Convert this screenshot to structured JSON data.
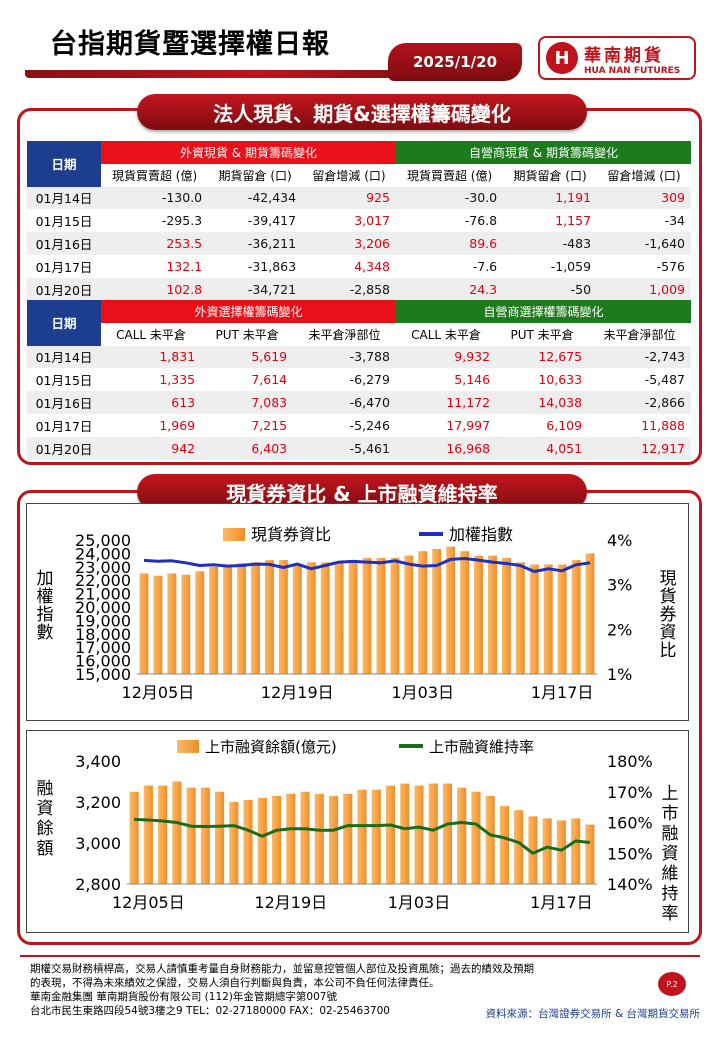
{
  "header": {
    "title": "台指期貨暨選擇權日報",
    "date": "2025/1/20",
    "logo_zh": "華南期貨",
    "logo_en": "HUA NAN FUTURES",
    "logo_mark": "H"
  },
  "section1": {
    "banner": "法人現貨、期貨&選擇權籌碼變化",
    "table1": {
      "date_header": "日期",
      "group_left": "外資現貨 & 期貨籌碼變化",
      "group_right": "自營商現貨 & 期貨籌碼變化",
      "cols": [
        "現貨買賣超 (億)",
        "期貨留倉 (口)",
        "留倉增減 (口)",
        "現貨買賣超 (億)",
        "期貨留倉 (口)",
        "留倉增減 (口)"
      ],
      "rows": [
        [
          "01月14日",
          "-130.0",
          "-42,434",
          "925",
          "-30.0",
          "1,191",
          "309"
        ],
        [
          "01月15日",
          "-295.3",
          "-39,417",
          "3,017",
          "-76.8",
          "1,157",
          "-34"
        ],
        [
          "01月16日",
          "253.5",
          "-36,211",
          "3,206",
          "89.6",
          "-483",
          "-1,640"
        ],
        [
          "01月17日",
          "132.1",
          "-31,863",
          "4,348",
          "-7.6",
          "-1,059",
          "-576"
        ],
        [
          "01月20日",
          "102.8",
          "-34,721",
          "-2,858",
          "24.3",
          "-50",
          "1,009"
        ]
      ]
    },
    "table2": {
      "date_header": "日期",
      "group_left": "外資選擇權籌碼變化",
      "group_right": "自營商選擇權籌碼變化",
      "cols": [
        "CALL 未平倉",
        "PUT 未平倉",
        "未平倉淨部位",
        "CALL 未平倉",
        "PUT 未平倉",
        "未平倉淨部位"
      ],
      "rows": [
        [
          "01月14日",
          "1,831",
          "5,619",
          "-3,788",
          "9,932",
          "12,675",
          "-2,743"
        ],
        [
          "01月15日",
          "1,335",
          "7,614",
          "-6,279",
          "5,146",
          "10,633",
          "-5,487"
        ],
        [
          "01月16日",
          "613",
          "7,083",
          "-6,470",
          "11,172",
          "14,038",
          "-2,866"
        ],
        [
          "01月17日",
          "1,969",
          "7,215",
          "-5,246",
          "17,997",
          "6,109",
          "11,888"
        ],
        [
          "01月20日",
          "942",
          "6,403",
          "-5,461",
          "16,968",
          "4,051",
          "12,917"
        ]
      ]
    }
  },
  "section2": {
    "banner": "現貨券資比 & 上市融資維持率"
  },
  "colors": {
    "brand_red": "#c0141c",
    "bar_orange": "#f7a54a",
    "line_blue": "#1f2fbf",
    "line_green": "#1a6b1a",
    "date_header_blue": "#1d3d8f",
    "group_red": "#e8111a",
    "group_green": "#1d7a1d"
  },
  "chart_data": [
    {
      "type": "bar",
      "chart": "top",
      "legend": [
        "現貨券資比",
        "加權指數"
      ],
      "ylabel": "加權指數",
      "y2label": "現貨券資比",
      "ylim": [
        15000,
        25000
      ],
      "yticks": [
        "15,000",
        "16,000",
        "17,000",
        "18,000",
        "19,000",
        "20,000",
        "21,000",
        "22,000",
        "23,000",
        "24,000",
        "25,000"
      ],
      "y2lim": [
        1,
        4
      ],
      "y2ticks": [
        "1%",
        "2%",
        "3%",
        "4%"
      ],
      "xticks": [
        "12月05日",
        "12月19日",
        "1月03日",
        "1月17日"
      ],
      "series": [
        {
          "name": "現貨券資比",
          "type": "bar",
          "axis": "right",
          "unit": "%",
          "values": [
            3.25,
            3.2,
            3.25,
            3.22,
            3.3,
            3.4,
            3.45,
            3.48,
            3.5,
            3.55,
            3.55,
            3.45,
            3.5,
            3.5,
            3.5,
            3.5,
            3.6,
            3.6,
            3.6,
            3.65,
            3.75,
            3.8,
            3.85,
            3.75,
            3.65,
            3.65,
            3.6,
            3.5,
            3.45,
            3.45,
            3.45,
            3.55,
            3.7
          ]
        },
        {
          "name": "加權指數",
          "type": "line",
          "axis": "left",
          "values": [
            23480,
            23420,
            23450,
            23300,
            23100,
            23150,
            23050,
            23100,
            23200,
            23180,
            22950,
            23200,
            22850,
            23100,
            23350,
            23400,
            23350,
            23300,
            23450,
            23200,
            23050,
            23100,
            23550,
            23620,
            23500,
            23350,
            23250,
            23100,
            22650,
            22850,
            22700,
            23150,
            23300
          ]
        }
      ]
    },
    {
      "type": "bar",
      "chart": "bottom",
      "legend": [
        "上市融資餘額(億元)",
        "上市融資維持率"
      ],
      "ylabel": "融資餘額",
      "y2label": "上市融資維持率",
      "ylim": [
        2800,
        3400
      ],
      "yticks": [
        "2,800",
        "3,000",
        "3,200",
        "3,400"
      ],
      "y2lim": [
        140,
        180
      ],
      "y2ticks": [
        "140%",
        "150%",
        "160%",
        "170%",
        "180%"
      ],
      "xticks": [
        "12月05日",
        "12月19日",
        "1月03日",
        "1月17日"
      ],
      "series": [
        {
          "name": "上市融資餘額(億元)",
          "type": "bar",
          "axis": "left",
          "values": [
            3250,
            3280,
            3280,
            3300,
            3270,
            3270,
            3250,
            3200,
            3210,
            3220,
            3230,
            3240,
            3250,
            3240,
            3230,
            3240,
            3260,
            3260,
            3280,
            3290,
            3280,
            3290,
            3290,
            3270,
            3250,
            3230,
            3180,
            3160,
            3130,
            3120,
            3110,
            3120,
            3090
          ]
        },
        {
          "name": "上市融資維持率",
          "type": "line",
          "axis": "right",
          "unit": "%",
          "values": [
            161,
            160.8,
            160.5,
            160,
            158.8,
            158.7,
            158.8,
            159,
            157.5,
            155.5,
            157.5,
            158,
            158,
            157.5,
            157.5,
            159,
            159,
            159,
            159.2,
            158,
            158.5,
            157.5,
            159.5,
            160,
            159.5,
            156,
            155,
            153.5,
            150,
            152,
            151,
            154,
            153.5
          ]
        }
      ]
    }
  ],
  "footer": {
    "lines": [
      "期權交易財務槓桿高，交易人請慎重考量自身財務能力，並留意控管個人部位及投資風險；過去的績效及預期",
      "的表現，不得為未來績效之保證，交易人須自行判斷與負責，本公司不負任何法律責任。",
      "華南金融集團 華南期貨股份有限公司 (112)年金管期總字第007號",
      "台北市民生東路四段54號3樓之9  TEL：02-27180000  FAX：02-25463700"
    ],
    "source": "資料來源：台灣證券交易所 & 台灣期貨交易所",
    "page": "P.2"
  }
}
